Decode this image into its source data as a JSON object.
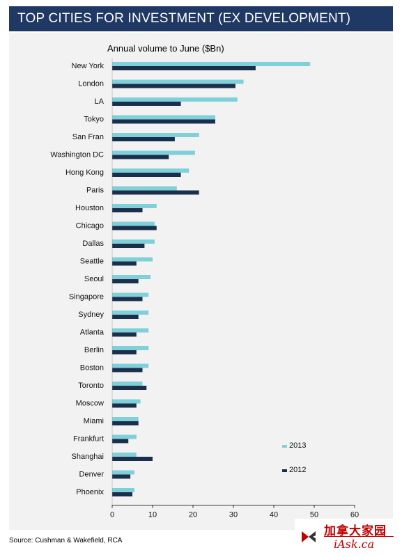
{
  "header": {
    "title": "TOP CITIES FOR INVESTMENT (EX DEVELOPMENT)"
  },
  "footer": {
    "source": "Source: Cushman & Wakefield, RCA"
  },
  "logo": {
    "chinese": "加拿大家园",
    "english": "iAsk.ca"
  },
  "colors": {
    "header_bg": "#1f3864",
    "series_2013": "#7fd0d8",
    "series_2012": "#1b2f4d"
  },
  "chart_data": {
    "type": "bar",
    "orientation": "horizontal",
    "title": "Annual volume to June ($Bn)",
    "categories": [
      "New York",
      "London",
      "LA",
      "Tokyo",
      "San Fran",
      "Washington DC",
      "Hong Kong",
      "Paris",
      "Houston",
      "Chicago",
      "Dallas",
      "Seattle",
      "Seoul",
      "Singapore",
      "Sydney",
      "Atlanta",
      "Berlin",
      "Boston",
      "Toronto",
      "Moscow",
      "Miami",
      "Frankfurt",
      "Shanghai",
      "Denver",
      "Phoenix"
    ],
    "series": [
      {
        "name": "2013",
        "values": [
          49,
          32.5,
          31,
          25.5,
          21.5,
          20.5,
          19,
          16,
          11,
          10.5,
          10.5,
          10,
          9.5,
          9,
          9,
          9,
          9,
          9,
          7.5,
          7,
          6.5,
          6,
          6,
          5.5,
          5.5
        ]
      },
      {
        "name": "2012",
        "values": [
          35.5,
          30.5,
          17,
          25.5,
          15.5,
          14,
          17,
          21.5,
          7.5,
          11,
          8,
          6,
          6.5,
          7.5,
          6.5,
          6,
          6,
          7.5,
          8.5,
          6,
          6.5,
          4,
          10,
          4.5,
          5
        ]
      }
    ],
    "x_ticks": [
      "0",
      "10",
      "20",
      "30",
      "40",
      "50",
      "60"
    ],
    "xlim": [
      0,
      60
    ],
    "legend_position": "bottom-right",
    "grid": false
  }
}
